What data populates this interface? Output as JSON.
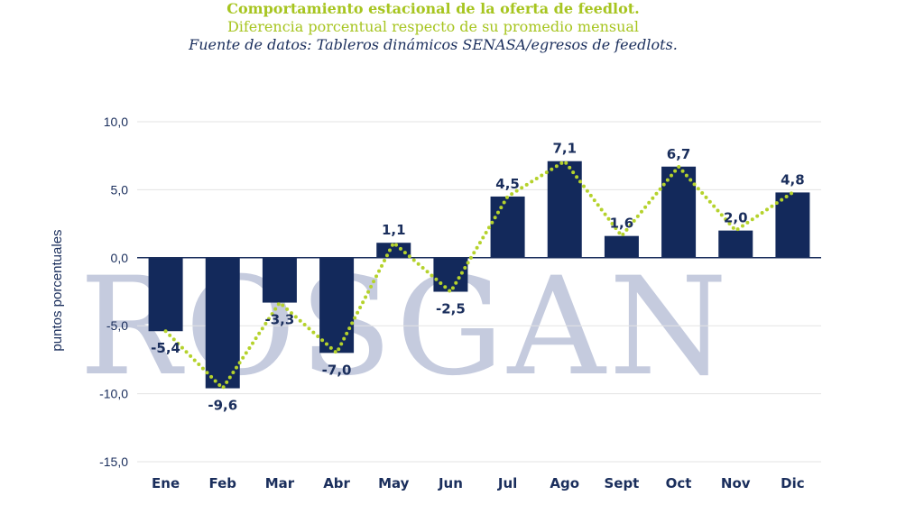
{
  "colors": {
    "title": "#a7c520",
    "source": "#1a2e5c",
    "bar": "#13295b",
    "line": "#b5d22c",
    "grid": "#e3e3e3",
    "axis": "#1a2e5c",
    "watermark": "#c5cbde"
  },
  "header": {
    "title": "Comportamiento estacional de la oferta de feedlot.",
    "subtitle": "Diferencia porcentual respecto de su  promedio mensual",
    "source": "Fuente de datos: Tableros dinámicos SENASA/egresos de feedlots."
  },
  "watermark": {
    "text": "ROSGAN"
  },
  "chart_data": {
    "type": "bar",
    "categories": [
      "Ene",
      "Feb",
      "Mar",
      "Abr",
      "May",
      "Jun",
      "Jul",
      "Ago",
      "Sept",
      "Oct",
      "Nov",
      "Dic"
    ],
    "values": [
      -5.4,
      -9.6,
      -3.3,
      -7.0,
      1.1,
      -2.5,
      4.5,
      7.1,
      1.6,
      6.7,
      2.0,
      4.8
    ],
    "data_labels": [
      "-5,4",
      "-9,6",
      "-3,3",
      "-7,0",
      "1,1",
      "-2,5",
      "4,5",
      "7,1",
      "1,6",
      "6,7",
      "2,0",
      "4,8"
    ],
    "overlay_line": {
      "style": "dotted",
      "values": [
        -5.4,
        -9.6,
        -3.3,
        -7.0,
        1.1,
        -2.5,
        4.5,
        7.1,
        1.6,
        6.7,
        2.0,
        4.8
      ]
    },
    "ylabel": "puntos porcentuales",
    "ylim": [
      -15,
      10
    ],
    "yticks": [
      10,
      5,
      0,
      -5,
      -10,
      -15
    ],
    "ytick_labels": [
      "10,0",
      "5,0",
      "0,0",
      "-5,0",
      "-10,0",
      "-15,0"
    ],
    "grid": true,
    "legend": "none"
  }
}
